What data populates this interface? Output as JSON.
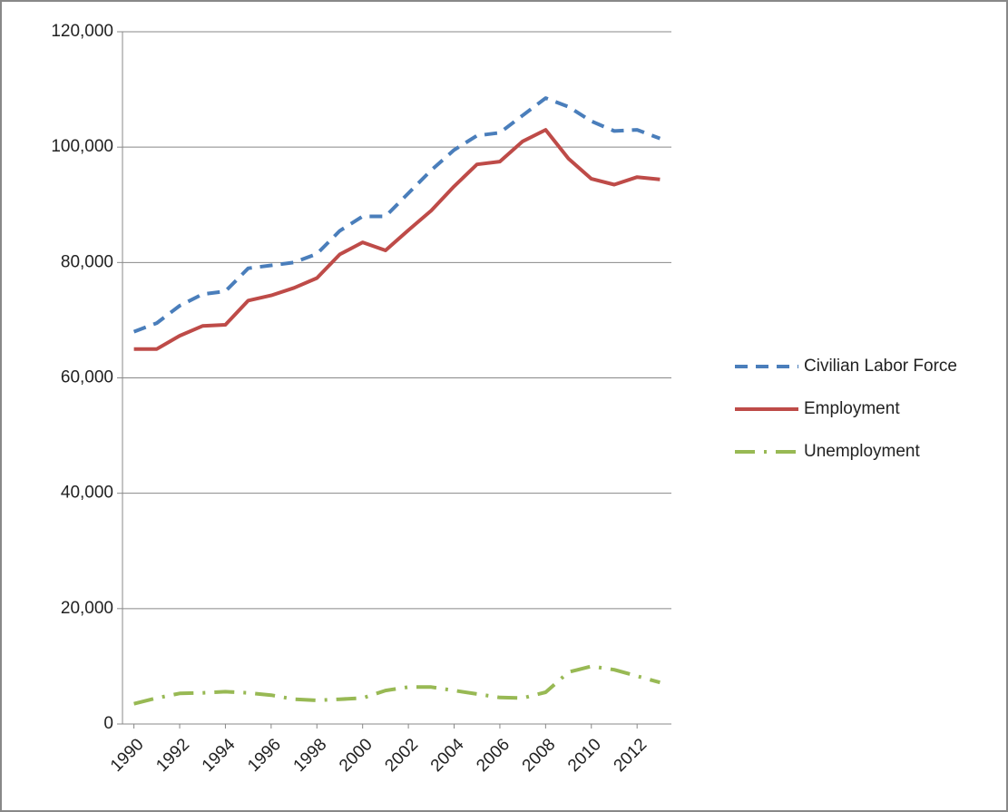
{
  "chart_data": {
    "type": "line",
    "x": [
      1990,
      1991,
      1992,
      1993,
      1994,
      1995,
      1996,
      1997,
      1998,
      1999,
      2000,
      2001,
      2002,
      2003,
      2004,
      2005,
      2006,
      2007,
      2008,
      2009,
      2010,
      2011,
      2012,
      2013
    ],
    "xlim": [
      1989.5,
      2013.5
    ],
    "xticks": [
      1990,
      1992,
      1994,
      1996,
      1998,
      2000,
      2002,
      2004,
      2006,
      2008,
      2010,
      2012
    ],
    "ylim": [
      0,
      120000
    ],
    "yticks": [
      {
        "value": 0,
        "label": "0"
      },
      {
        "value": 20000,
        "label": "20,000"
      },
      {
        "value": 40000,
        "label": "40,000"
      },
      {
        "value": 60000,
        "label": "60,000"
      },
      {
        "value": 80000,
        "label": "80,000"
      },
      {
        "value": 100000,
        "label": "100,000"
      },
      {
        "value": 120000,
        "label": "120,000"
      }
    ],
    "grid": true,
    "legend": "right",
    "series": [
      {
        "name": "Civilian Labor Force",
        "color": "#4a7ebb",
        "line_style": "dashed",
        "values": [
          68000,
          69500,
          72500,
          74500,
          75000,
          79000,
          79500,
          80000,
          81500,
          85500,
          88000,
          88000,
          92000,
          96000,
          99500,
          102000,
          102500,
          105500,
          108500,
          107000,
          104500,
          102800,
          103000,
          101500
        ]
      },
      {
        "name": "Employment",
        "color": "#be4b48",
        "line_style": "solid",
        "values": [
          65000,
          65000,
          67300,
          69000,
          69200,
          73400,
          74300,
          75600,
          77300,
          81400,
          83500,
          82100,
          85600,
          89000,
          93200,
          97000,
          97500,
          101000,
          103000,
          98000,
          94500,
          93500,
          94800,
          94400
        ]
      },
      {
        "name": "Unemployment",
        "color": "#98b954",
        "line_style": "dashdot",
        "values": [
          3500,
          4500,
          5300,
          5400,
          5600,
          5400,
          5000,
          4300,
          4100,
          4300,
          4500,
          5800,
          6400,
          6400,
          5800,
          5200,
          4600,
          4500,
          5500,
          9000,
          10000,
          9400,
          8300,
          7200
        ]
      }
    ]
  }
}
